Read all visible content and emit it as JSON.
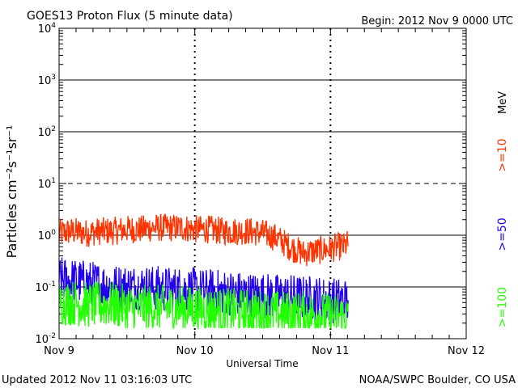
{
  "header": {
    "title": "GOES13 Proton Flux (5 minute data)",
    "begin": "Begin: 2012 Nov 9 0000 UTC"
  },
  "footer": {
    "updated": "Updated 2012 Nov 11 03:16:03 UTC",
    "credit": "NOAA/SWPC Boulder, CO USA"
  },
  "colors": {
    "ge10": "#ff3300",
    "ge50": "#2200ee",
    "ge100": "#22ff00"
  },
  "chart_data": {
    "type": "line",
    "title": "GOES13 Proton Flux (5 minute data)",
    "xlabel": "Universal Time",
    "ylabel": "Particles cm⁻²s⁻¹sr⁻¹",
    "yscale": "log",
    "ylim": [
      0.01,
      10000
    ],
    "xlim_days": [
      0,
      3
    ],
    "x_ticks": [
      {
        "day": 0,
        "label": "Nov 9"
      },
      {
        "day": 1,
        "label": "Nov 10"
      },
      {
        "day": 2,
        "label": "Nov 11"
      },
      {
        "day": 3,
        "label": "Nov 12"
      }
    ],
    "y_ticks": [
      {
        "exp": -2,
        "base": "10",
        "sup": "-2"
      },
      {
        "exp": -1,
        "base": "10",
        "sup": "-1"
      },
      {
        "exp": 0,
        "base": "10",
        "sup": "0"
      },
      {
        "exp": 1,
        "base": "10",
        "sup": "1"
      },
      {
        "exp": 2,
        "base": "10",
        "sup": "2"
      },
      {
        "exp": 3,
        "base": "10",
        "sup": "3"
      },
      {
        "exp": 4,
        "base": "10",
        "sup": "4"
      }
    ],
    "thresholds": [
      {
        "value": 1000,
        "style": "solid"
      },
      {
        "value": 100,
        "style": "solid"
      },
      {
        "value": 10,
        "style": "dashed"
      },
      {
        "value": 1,
        "style": "solid"
      },
      {
        "value": 0.1,
        "style": "solid"
      }
    ],
    "legend": {
      "unit": "MeV",
      "entries": [
        {
          "label": ">=10",
          "series": "ge10"
        },
        {
          "label": ">=50",
          "series": "ge50"
        },
        {
          "label": ">=100",
          "series": "ge100"
        }
      ]
    },
    "series": [
      {
        "name": ">=10 MeV",
        "key": "ge10",
        "x": [
          0.0,
          0.1,
          0.2,
          0.3,
          0.4,
          0.5,
          0.6,
          0.7,
          0.8,
          0.9,
          1.0,
          1.1,
          1.2,
          1.3,
          1.4,
          1.5,
          1.6,
          1.7,
          1.8,
          1.9,
          2.0,
          2.05,
          2.1,
          2.13
        ],
        "y": [
          1.1,
          1.2,
          1.1,
          1.2,
          1.2,
          1.3,
          1.3,
          1.4,
          1.4,
          1.4,
          1.3,
          1.3,
          1.2,
          1.2,
          1.2,
          1.1,
          0.9,
          0.6,
          0.45,
          0.5,
          0.55,
          0.6,
          0.6,
          0.7
        ],
        "noise": 0.55
      },
      {
        "name": ">=50 MeV",
        "key": "ge50",
        "x": [
          0.0,
          0.1,
          0.2,
          0.3,
          0.4,
          0.5,
          0.6,
          0.7,
          0.8,
          0.9,
          1.0,
          1.1,
          1.2,
          1.3,
          1.4,
          1.5,
          1.6,
          1.7,
          1.8,
          1.9,
          2.0,
          2.05,
          2.1,
          2.13
        ],
        "y": [
          0.14,
          0.13,
          0.12,
          0.11,
          0.1,
          0.1,
          0.1,
          0.095,
          0.09,
          0.09,
          0.085,
          0.08,
          0.08,
          0.075,
          0.07,
          0.07,
          0.065,
          0.065,
          0.06,
          0.06,
          0.055,
          0.055,
          0.055,
          0.05
        ],
        "noise": 0.9
      },
      {
        "name": ">=100 MeV",
        "key": "ge100",
        "x": [
          0.0,
          0.1,
          0.2,
          0.3,
          0.4,
          0.5,
          0.6,
          0.7,
          0.8,
          0.9,
          1.0,
          1.1,
          1.2,
          1.3,
          1.4,
          1.5,
          1.6,
          1.7,
          1.8,
          1.9,
          2.0,
          2.05,
          2.1,
          2.13
        ],
        "y": [
          0.05,
          0.05,
          0.045,
          0.045,
          0.045,
          0.04,
          0.04,
          0.04,
          0.04,
          0.038,
          0.038,
          0.036,
          0.035,
          0.034,
          0.033,
          0.032,
          0.031,
          0.03,
          0.03,
          0.029,
          0.028,
          0.027,
          0.027,
          0.025
        ],
        "noise": 0.9
      }
    ]
  }
}
